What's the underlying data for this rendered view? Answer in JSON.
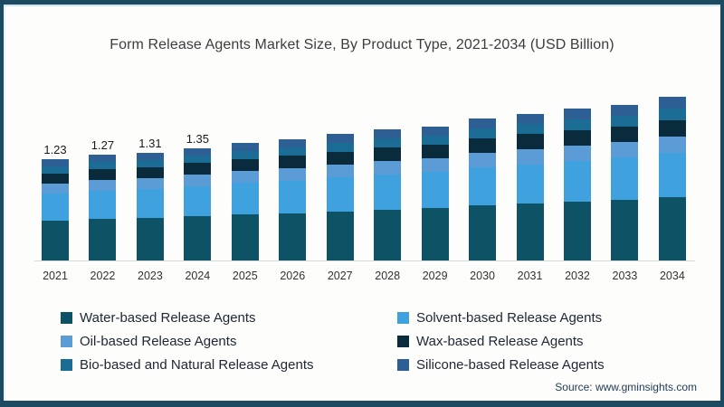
{
  "title": "Form Release Agents Market Size, By Product Type, 2021-2034 (USD Billion)",
  "source": "Source: www.gminsights.com",
  "colors": {
    "frame_border": "#1c4b61",
    "frame_accent_line": "#cfe9f4",
    "baseline": "#d8d8d8",
    "title_text": "#3d3d3d",
    "value_label_text": "#1a1a1a",
    "axis_label_text": "#333333",
    "legend_text": "#1e2733",
    "source_text": "#1d3a55"
  },
  "chart_data": {
    "type": "bar",
    "stacked": true,
    "title": "Form Release Agents Market Size, By Product Type, 2021-2034 (USD Billion)",
    "unit": "USD Billion",
    "xlabel": "",
    "ylabel": "",
    "gridlines": false,
    "y_axis_visible": false,
    "legend_position": "bottom",
    "categories": [
      "2021",
      "2022",
      "2023",
      "2024",
      "2025",
      "2026",
      "2027",
      "2028",
      "2029",
      "2030",
      "2031",
      "2032",
      "2033",
      "2034"
    ],
    "totals": [
      1.23,
      1.27,
      1.31,
      1.35,
      1.4,
      1.45,
      1.5,
      1.56,
      1.62,
      1.69,
      1.75,
      1.82,
      1.88,
      1.95
    ],
    "value_labels": [
      "1.23",
      "1.27",
      "1.31",
      "1.35",
      "",
      "",
      "",
      "",
      "",
      "",
      "",
      "",
      "",
      ""
    ],
    "series": [
      {
        "name": "Water-based Release Agents",
        "color": "#0E5266",
        "values": [
          0.48,
          0.5,
          0.51,
          0.53,
          0.55,
          0.57,
          0.59,
          0.61,
          0.63,
          0.66,
          0.68,
          0.71,
          0.73,
          0.76
        ]
      },
      {
        "name": "Solvent-based Release Agents",
        "color": "#3FA2DE",
        "values": [
          0.33,
          0.34,
          0.35,
          0.36,
          0.38,
          0.39,
          0.41,
          0.42,
          0.44,
          0.46,
          0.47,
          0.49,
          0.51,
          0.53
        ]
      },
      {
        "name": "Oil-based Release Agents",
        "color": "#5C9CD6",
        "values": [
          0.12,
          0.13,
          0.13,
          0.14,
          0.14,
          0.15,
          0.15,
          0.16,
          0.16,
          0.17,
          0.18,
          0.18,
          0.19,
          0.2
        ]
      },
      {
        "name": "Wax-based Release Agents",
        "color": "#0A2B3B",
        "values": [
          0.12,
          0.13,
          0.13,
          0.14,
          0.14,
          0.15,
          0.15,
          0.16,
          0.16,
          0.17,
          0.18,
          0.18,
          0.19,
          0.2
        ]
      },
      {
        "name": "Bio-based and Natural Release Agents",
        "color": "#1C6D96",
        "values": [
          0.09,
          0.09,
          0.09,
          0.09,
          0.1,
          0.1,
          0.11,
          0.11,
          0.11,
          0.12,
          0.12,
          0.13,
          0.13,
          0.14
        ]
      },
      {
        "name": "Silicone-based Release Agents",
        "color": "#2D5F94",
        "values": [
          0.09,
          0.09,
          0.09,
          0.09,
          0.1,
          0.1,
          0.11,
          0.11,
          0.11,
          0.12,
          0.12,
          0.13,
          0.13,
          0.14
        ]
      }
    ]
  },
  "legend": {
    "items": [
      {
        "label": "Water-based Release Agents",
        "color": "#0E5266"
      },
      {
        "label": "Solvent-based Release Agents",
        "color": "#3FA2DE"
      },
      {
        "label": "Oil-based Release Agents",
        "color": "#5C9CD6"
      },
      {
        "label": "Wax-based Release Agents",
        "color": "#0A2B3B"
      },
      {
        "label": "Bio-based and Natural Release Agents",
        "color": "#1C6D96"
      },
      {
        "label": "Silicone-based Release Agents",
        "color": "#2D5F94"
      }
    ]
  }
}
